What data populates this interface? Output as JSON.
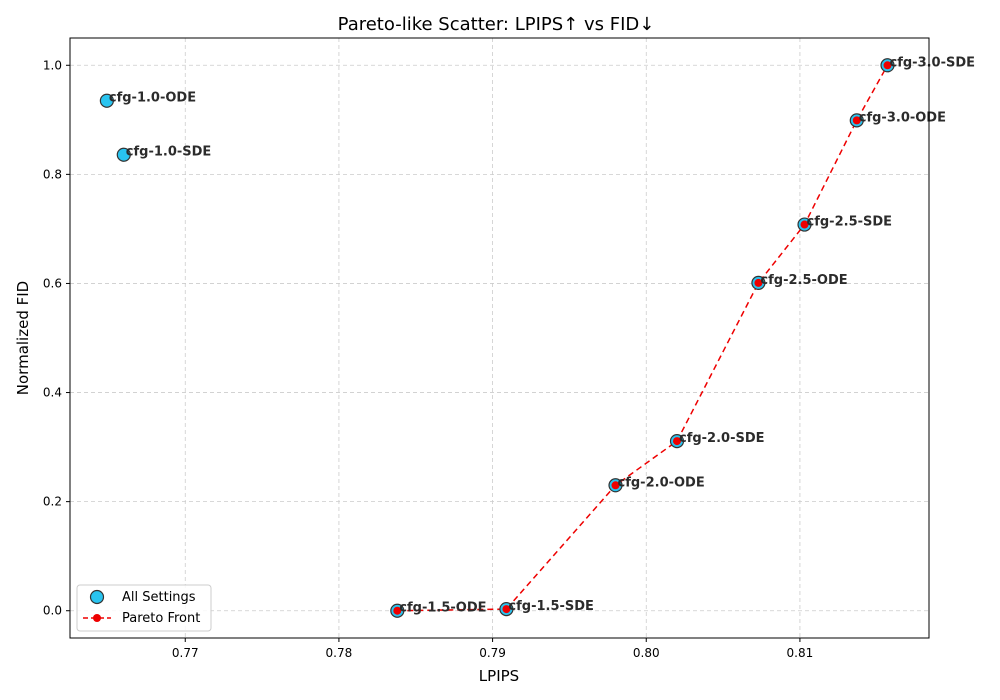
{
  "chart_data": {
    "type": "scatter",
    "title": "Pareto-like Scatter: LPIPS↑ vs FID↓",
    "xlabel": "LPIPS",
    "ylabel": "Normalized FID",
    "xlim": [
      0.7625,
      0.8184
    ],
    "ylim": [
      -0.05,
      1.05
    ],
    "xticks": [
      0.77,
      0.78,
      0.79,
      0.8,
      0.81
    ],
    "xtick_labels": [
      "0.77",
      "0.78",
      "0.79",
      "0.80",
      "0.81"
    ],
    "yticks": [
      0.0,
      0.2,
      0.4,
      0.6,
      0.8,
      1.0
    ],
    "ytick_labels": [
      "0.0",
      "0.2",
      "0.4",
      "0.6",
      "0.8",
      "1.0"
    ],
    "grid": true,
    "legend_position": "lower-left",
    "series": [
      {
        "name": "All Settings",
        "marker": "circle",
        "color": "#29c4f0",
        "edge_color": "#333333",
        "points": [
          {
            "label": "cfg-1.0-ODE",
            "x": 0.7649,
            "y": 0.935
          },
          {
            "label": "cfg-1.0-SDE",
            "x": 0.766,
            "y": 0.836
          },
          {
            "label": "cfg-1.5-ODE",
            "x": 0.7838,
            "y": 0.0
          },
          {
            "label": "cfg-1.5-SDE",
            "x": 0.7909,
            "y": 0.003
          },
          {
            "label": "cfg-2.0-ODE",
            "x": 0.798,
            "y": 0.23
          },
          {
            "label": "cfg-2.0-SDE",
            "x": 0.802,
            "y": 0.311
          },
          {
            "label": "cfg-2.5-ODE",
            "x": 0.8073,
            "y": 0.601
          },
          {
            "label": "cfg-2.5-SDE",
            "x": 0.8103,
            "y": 0.708
          },
          {
            "label": "cfg-3.0-ODE",
            "x": 0.8137,
            "y": 0.899
          },
          {
            "label": "cfg-3.0-SDE",
            "x": 0.8157,
            "y": 1.0
          }
        ]
      },
      {
        "name": "Pareto Front",
        "style": "dashed-line-with-markers",
        "color": "#ee0000",
        "x": [
          0.7838,
          0.7909,
          0.798,
          0.802,
          0.8073,
          0.8103,
          0.8137,
          0.8157
        ],
        "y": [
          0.0,
          0.003,
          0.23,
          0.311,
          0.601,
          0.708,
          0.899,
          1.0
        ]
      }
    ]
  }
}
